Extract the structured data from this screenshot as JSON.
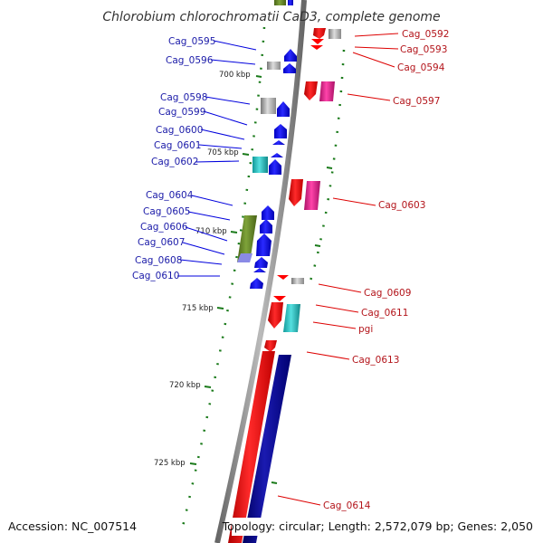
{
  "title": "Chlorobium chlorochromatii CaD3, complete genome",
  "footer": {
    "accession": "Accession: NC_007514",
    "summary": "Topology: circular; Length: 2,572,079 bp; Genes: 2,050"
  },
  "scale_labels": [
    "700 kbp",
    "705 kbp",
    "710 kbp",
    "715 kbp",
    "720 kbp",
    "725 kbp"
  ],
  "left_genes": [
    "Cag_0595",
    "Cag_0596",
    "Cag_0598",
    "Cag_0599",
    "Cag_0600",
    "Cag_0601",
    "Cag_0602",
    "Cag_0604",
    "Cag_0605",
    "Cag_0606",
    "Cag_0607",
    "Cag_0608",
    "Cag_0610"
  ],
  "right_genes": [
    "Cag_0592",
    "Cag_0593",
    "Cag_0594",
    "Cag_0597",
    "Cag_0603",
    "Cag_0609",
    "Cag_0611",
    "pgi",
    "Cag_0613",
    "Cag_0614"
  ],
  "colors": {
    "forward_strand": "#ff0000",
    "reverse_strand": "#0000ff",
    "long_reverse": "#000080",
    "cyan_feature": "#33cccc",
    "magenta_feature": "#ee2299",
    "olive_feature": "#6b8e23",
    "gray_feature": "#999999",
    "backbone": "#8c8c8c",
    "scale_tick": "#1a7a1a"
  }
}
